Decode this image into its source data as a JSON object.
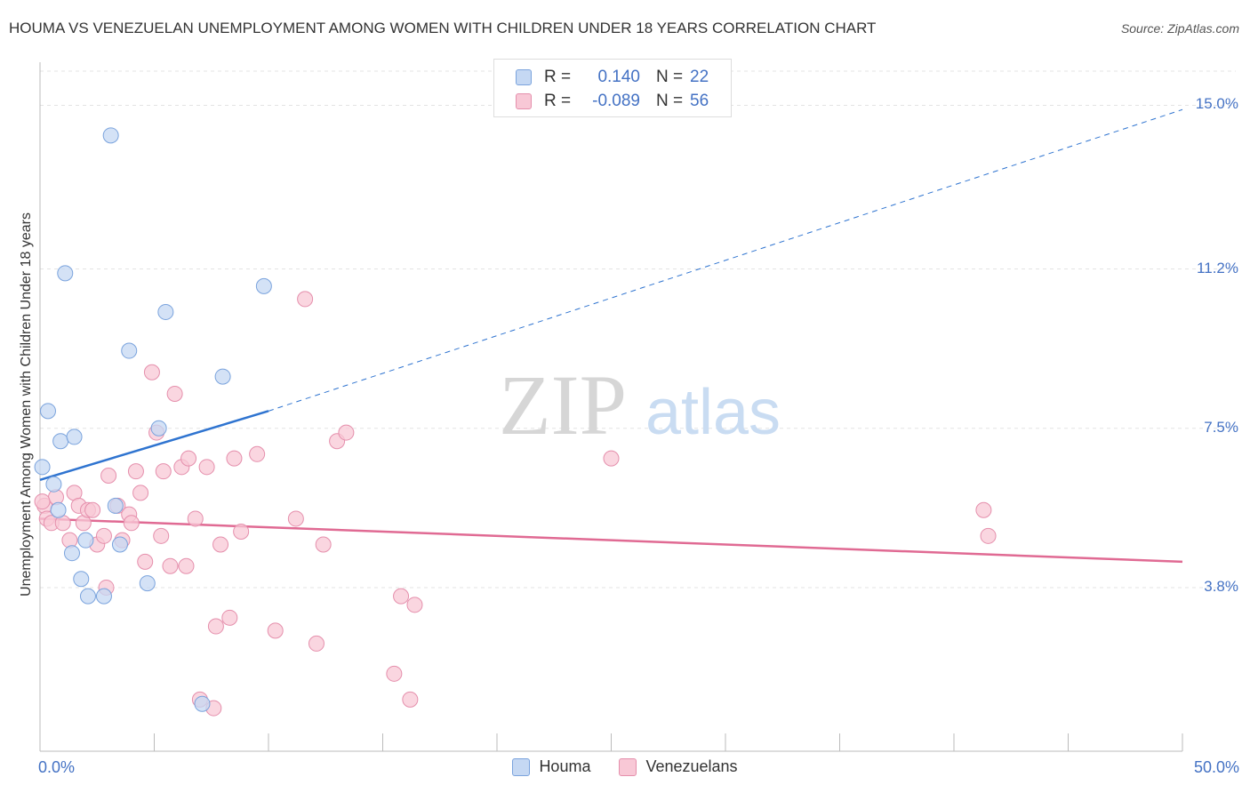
{
  "title": "HOUMA VS VENEZUELAN UNEMPLOYMENT AMONG WOMEN WITH CHILDREN UNDER 18 YEARS CORRELATION CHART",
  "source": "Source: ZipAtlas.com",
  "watermark": {
    "zip": "ZIP",
    "atlas": "atlas"
  },
  "colors": {
    "houma_fill": "#c5d8f3",
    "houma_stroke": "#7aa3dd",
    "houma_line": "#2f74d0",
    "ven_fill": "#f8c8d6",
    "ven_stroke": "#e58fac",
    "ven_line": "#e06a93",
    "axis_text": "#4472c4",
    "grid": "#e3e3e3"
  },
  "legend_top": [
    {
      "r_label": "R =",
      "r_value": "0.140",
      "n_label": "N =",
      "n_value": "22"
    },
    {
      "r_label": "R =",
      "r_value": "-0.089",
      "n_label": "N =",
      "n_value": "56"
    }
  ],
  "legend_bottom": [
    "Houma",
    "Venezuelans"
  ],
  "chart_data": {
    "type": "scatter",
    "title": "HOUMA VS VENEZUELAN UNEMPLOYMENT AMONG WOMEN WITH CHILDREN UNDER 18 YEARS CORRELATION CHART",
    "xlabel": "",
    "ylabel": "Unemployment Among Women with Children Under 18 years",
    "xlim": [
      0,
      50
    ],
    "ylim": [
      0,
      16
    ],
    "x_tick_labels": [
      "0.0%",
      "50.0%"
    ],
    "y_ticks": [
      3.8,
      7.5,
      11.2,
      15.0
    ],
    "y_tick_labels": [
      "3.8%",
      "7.5%",
      "11.2%",
      "15.0%"
    ],
    "grid": true,
    "legend_position": "bottom",
    "series": [
      {
        "name": "Houma",
        "points": [
          {
            "x": 0.1,
            "y": 6.6
          },
          {
            "x": 0.35,
            "y": 7.9
          },
          {
            "x": 0.6,
            "y": 6.2
          },
          {
            "x": 0.8,
            "y": 5.6
          },
          {
            "x": 0.9,
            "y": 7.2
          },
          {
            "x": 1.1,
            "y": 11.1
          },
          {
            "x": 1.4,
            "y": 4.6
          },
          {
            "x": 1.5,
            "y": 7.3
          },
          {
            "x": 1.8,
            "y": 4.0
          },
          {
            "x": 2.0,
            "y": 4.9
          },
          {
            "x": 2.1,
            "y": 3.6
          },
          {
            "x": 2.8,
            "y": 3.6
          },
          {
            "x": 3.1,
            "y": 14.3
          },
          {
            "x": 3.3,
            "y": 5.7
          },
          {
            "x": 3.5,
            "y": 4.8
          },
          {
            "x": 3.9,
            "y": 9.3
          },
          {
            "x": 4.7,
            "y": 3.9
          },
          {
            "x": 5.2,
            "y": 7.5
          },
          {
            "x": 5.5,
            "y": 10.2
          },
          {
            "x": 7.1,
            "y": 1.1
          },
          {
            "x": 8.0,
            "y": 8.7
          },
          {
            "x": 9.8,
            "y": 10.8
          }
        ],
        "trend": {
          "x0": 0,
          "y0": 6.3,
          "x1": 10,
          "y1": 7.9,
          "dashed_to_x": 50,
          "dashed_to_y": 14.9
        }
      },
      {
        "name": "Venezuelans",
        "points": [
          {
            "x": 0.2,
            "y": 5.7
          },
          {
            "x": 0.3,
            "y": 5.4
          },
          {
            "x": 0.5,
            "y": 5.3
          },
          {
            "x": 0.7,
            "y": 5.9
          },
          {
            "x": 1.0,
            "y": 5.3
          },
          {
            "x": 1.3,
            "y": 4.9
          },
          {
            "x": 1.5,
            "y": 6.0
          },
          {
            "x": 1.7,
            "y": 5.7
          },
          {
            "x": 1.9,
            "y": 5.3
          },
          {
            "x": 2.1,
            "y": 5.6
          },
          {
            "x": 2.5,
            "y": 4.8
          },
          {
            "x": 2.8,
            "y": 5.0
          },
          {
            "x": 2.9,
            "y": 3.8
          },
          {
            "x": 3.0,
            "y": 6.4
          },
          {
            "x": 3.4,
            "y": 5.7
          },
          {
            "x": 3.6,
            "y": 4.9
          },
          {
            "x": 3.9,
            "y": 5.5
          },
          {
            "x": 4.0,
            "y": 5.3
          },
          {
            "x": 4.2,
            "y": 6.5
          },
          {
            "x": 4.4,
            "y": 6.0
          },
          {
            "x": 4.6,
            "y": 4.4
          },
          {
            "x": 4.9,
            "y": 8.8
          },
          {
            "x": 5.1,
            "y": 7.4
          },
          {
            "x": 5.3,
            "y": 5.0
          },
          {
            "x": 5.4,
            "y": 6.5
          },
          {
            "x": 5.7,
            "y": 4.3
          },
          {
            "x": 5.9,
            "y": 8.3
          },
          {
            "x": 6.2,
            "y": 6.6
          },
          {
            "x": 6.4,
            "y": 4.3
          },
          {
            "x": 6.5,
            "y": 6.8
          },
          {
            "x": 6.8,
            "y": 5.4
          },
          {
            "x": 7.0,
            "y": 1.2
          },
          {
            "x": 7.3,
            "y": 6.6
          },
          {
            "x": 7.6,
            "y": 1.0
          },
          {
            "x": 7.7,
            "y": 2.9
          },
          {
            "x": 7.9,
            "y": 4.8
          },
          {
            "x": 8.3,
            "y": 3.1
          },
          {
            "x": 8.5,
            "y": 6.8
          },
          {
            "x": 8.8,
            "y": 5.1
          },
          {
            "x": 9.5,
            "y": 6.9
          },
          {
            "x": 10.3,
            "y": 2.8
          },
          {
            "x": 11.2,
            "y": 5.4
          },
          {
            "x": 11.6,
            "y": 10.5
          },
          {
            "x": 12.1,
            "y": 2.5
          },
          {
            "x": 12.4,
            "y": 4.8
          },
          {
            "x": 13.0,
            "y": 7.2
          },
          {
            "x": 13.4,
            "y": 7.4
          },
          {
            "x": 15.5,
            "y": 1.8
          },
          {
            "x": 15.8,
            "y": 3.6
          },
          {
            "x": 16.2,
            "y": 1.2
          },
          {
            "x": 16.4,
            "y": 3.4
          },
          {
            "x": 25.0,
            "y": 6.8
          },
          {
            "x": 41.3,
            "y": 5.6
          },
          {
            "x": 41.5,
            "y": 5.0
          },
          {
            "x": 0.1,
            "y": 5.8
          },
          {
            "x": 2.3,
            "y": 5.6
          }
        ],
        "trend": {
          "x0": 0,
          "y0": 5.4,
          "x1": 50,
          "y1": 4.4
        }
      }
    ]
  }
}
